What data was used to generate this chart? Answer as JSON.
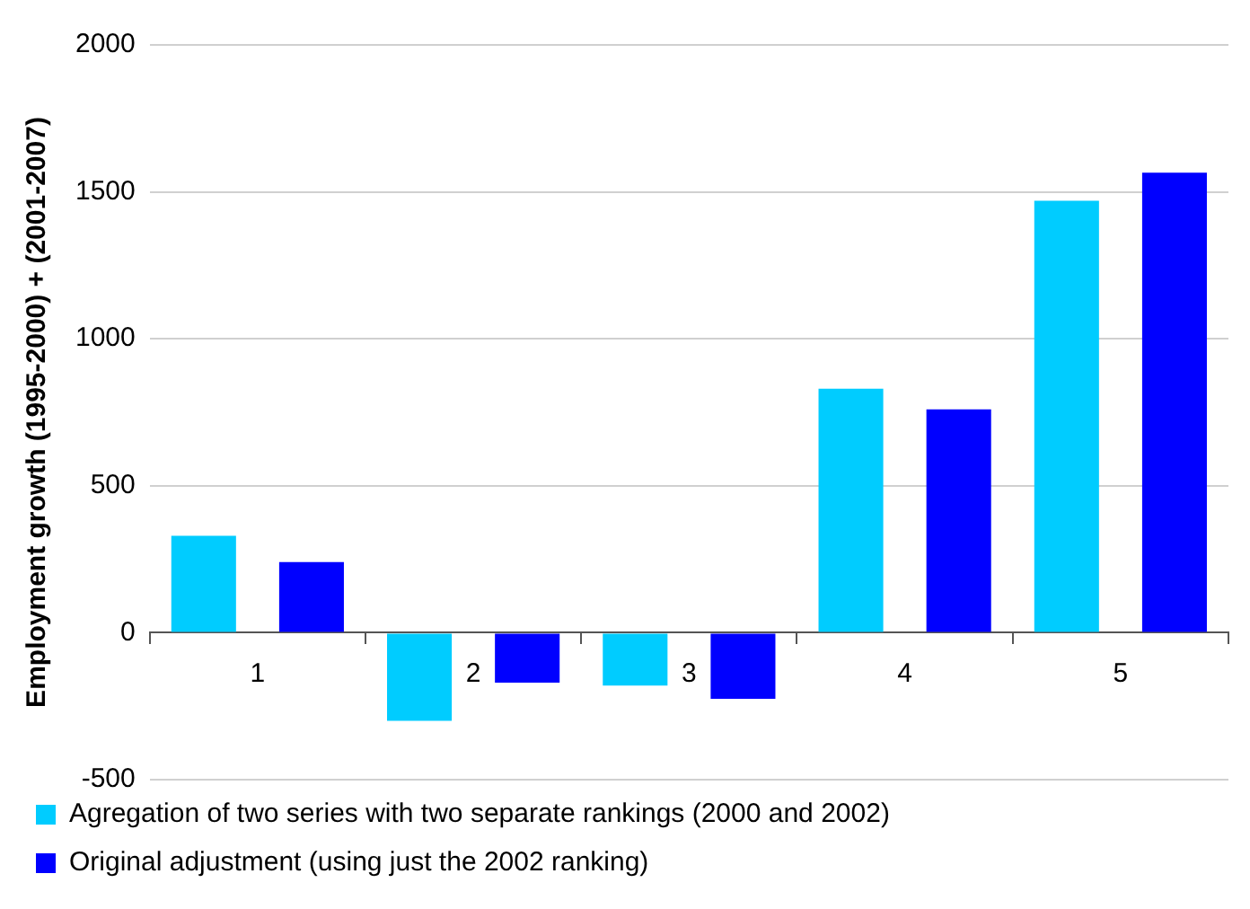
{
  "chart_data": {
    "type": "bar",
    "ylabel": "Employment growth (1995-2000) + (2001-2007)",
    "categories": [
      "1",
      "2",
      "3",
      "4",
      "5"
    ],
    "series": [
      {
        "name": "Agregation of two series with two separate rankings (2000 and 2002)",
        "color": "#00ccff",
        "values": [
          330,
          -300,
          -180,
          830,
          1470
        ]
      },
      {
        "name": "Original adjustment (using just the 2002 ranking)",
        "color": "#0000ff",
        "values": [
          240,
          -170,
          -225,
          760,
          1565
        ]
      }
    ],
    "ylim": [
      -500,
      2000
    ],
    "yticks": [
      -500,
      0,
      500,
      1000,
      1500,
      2000
    ],
    "grid": "y",
    "legend": "bottom"
  }
}
